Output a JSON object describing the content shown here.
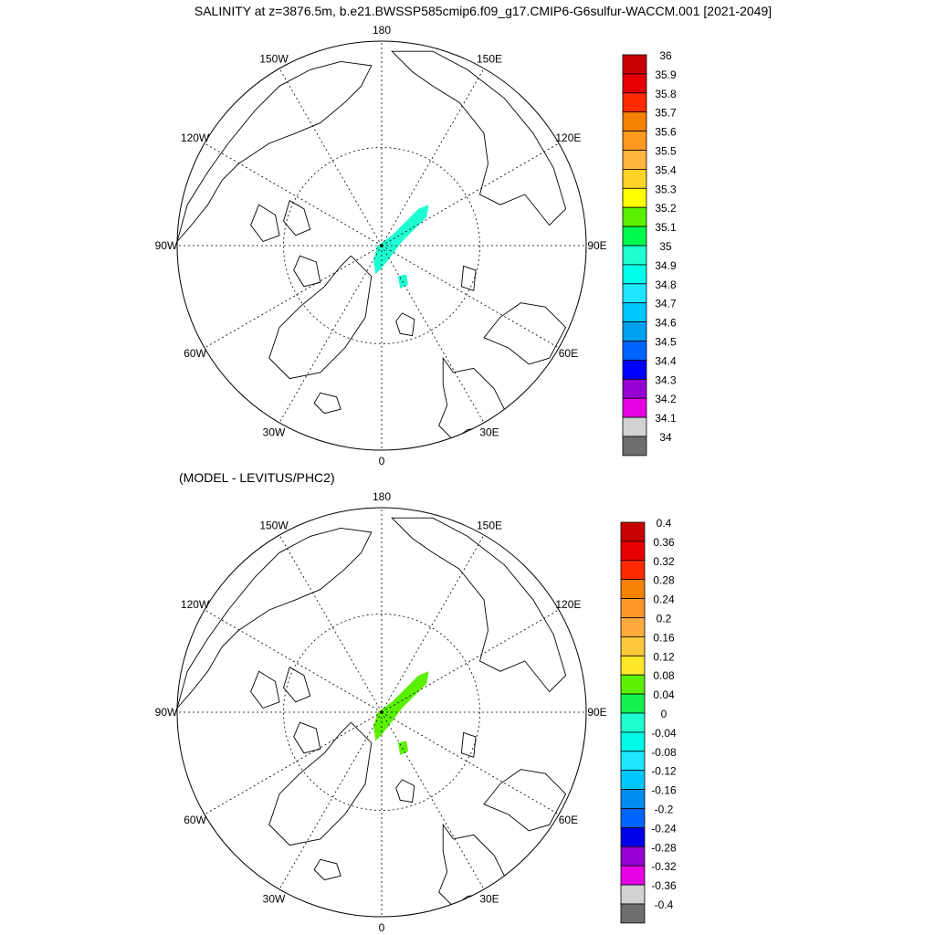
{
  "title": "SALINITY at z=3876.5m, b.e21.BWSSP585cmip6.f09_g17.CMIP6-G6sulfur-WACCM.001 [2021-2049]",
  "subtitle": "(MODEL - LEVITUS/PHC2)",
  "lon_labels": [
    "180",
    "150E",
    "120E",
    "90E",
    "60E",
    "30E",
    "0",
    "30W",
    "60W",
    "90W",
    "120W",
    "150W"
  ],
  "panels": [
    {
      "id": "salinity",
      "colorbar_labels": [
        "36",
        "35.9",
        "35.8",
        "35.7",
        "35.6",
        "35.5",
        "35.4",
        "35.3",
        "35.2",
        "35.1",
        "35",
        "34.9",
        "34.8",
        "34.7",
        "34.6",
        "34.5",
        "34.4",
        "34.3",
        "34.2",
        "34.1",
        "34"
      ],
      "colorbar_colors": [
        "#c80000",
        "#e60000",
        "#ff2a00",
        "#f58200",
        "#ff9a1e",
        "#ffb43c",
        "#ffd228",
        "#ffff00",
        "#5af000",
        "#00fa50",
        "#1effd2",
        "#00ffeb",
        "#1ee6ff",
        "#00c8ff",
        "#00a0f0",
        "#0064ff",
        "#0000ff",
        "#9600d2",
        "#e600e6",
        "#d2d2d2",
        "#6e6e6e"
      ],
      "field_color": "#1effd2"
    },
    {
      "id": "difference",
      "colorbar_labels": [
        "0.4",
        "0.36",
        "0.32",
        "0.28",
        "0.24",
        "0.2",
        "0.16",
        "0.12",
        "0.08",
        "0.04",
        "0",
        "-0.04",
        "-0.08",
        "-0.12",
        "-0.16",
        "-0.2",
        "-0.24",
        "-0.28",
        "-0.32",
        "-0.36",
        "-0.4"
      ],
      "colorbar_colors": [
        "#c80000",
        "#e60000",
        "#ff2a00",
        "#f58200",
        "#ff9628",
        "#ffaa3c",
        "#ffc83c",
        "#ffe628",
        "#5af000",
        "#14f050",
        "#1effd2",
        "#00fae6",
        "#1ee6ff",
        "#00c8ff",
        "#008cf0",
        "#0064ff",
        "#0000e6",
        "#9600d2",
        "#e600e6",
        "#d2d2d2",
        "#6e6e6e"
      ],
      "field_color": "#5af000"
    }
  ]
}
